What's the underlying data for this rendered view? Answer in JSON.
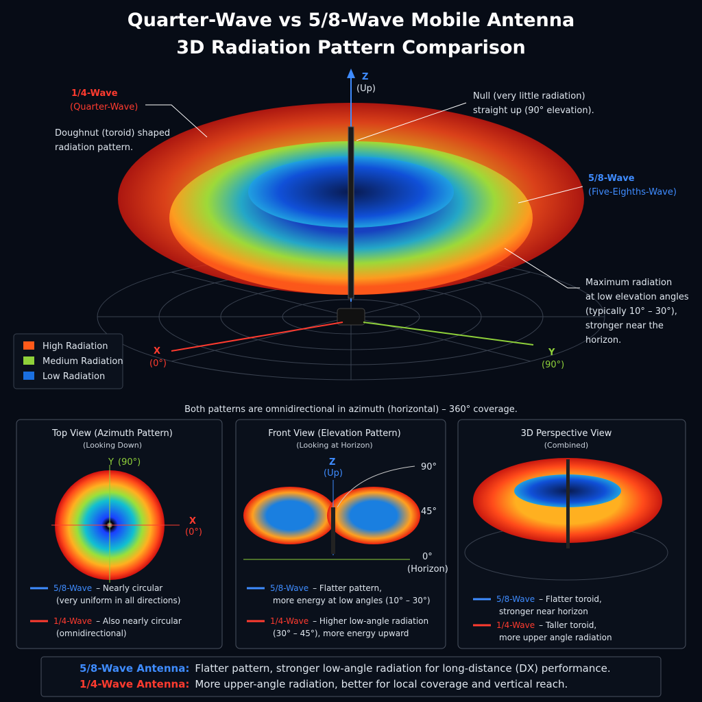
{
  "header": {
    "title_lines": [
      "Quarter-Wave vs 5/8-Wave Mobile Antenna",
      "3D Radiation Pattern Comparison"
    ]
  },
  "main": {
    "axes": {
      "z": "Z",
      "z_note": "(Up)",
      "x": "X",
      "x_note": "(0°)",
      "y": "Y",
      "y_note": "(90°)"
    },
    "quarter_label": {
      "title": "1/4-Wave",
      "subtitle": "(Quarter-Wave)"
    },
    "eighth_label": {
      "title": "5/8-Wave",
      "subtitle": "(Five-Eighths-Wave)"
    },
    "notes": [
      [
        "Doughnut (toroid) shaped",
        "radiation pattern."
      ],
      [
        "Null (very little radiation)",
        "straight up (90° elevation)."
      ],
      [
        "Maximum radiation",
        "at low elevation angles",
        "(typically 10° – 30°),",
        "stronger near the",
        "horizon."
      ]
    ],
    "legend": [
      "High Radiation",
      "Medium Radiation",
      "Low Radiation"
    ],
    "coverage_note": "Both patterns are omnidirectional in azimuth (horizontal) – 360° coverage."
  },
  "panels": [
    {
      "title": "Top View (Azimuth Pattern)",
      "subtitle": "(Looking Down)",
      "labels": [
        "Y",
        "(90°)",
        "X",
        "(0°)"
      ],
      "items": [
        {
          "name": "5/8-Wave",
          "text": [
            "– Nearly circular",
            "(very uniform in all directions)"
          ]
        },
        {
          "name": "1/4-Wave",
          "text": [
            "– Also nearly circular",
            "(omnidirectional)"
          ]
        }
      ]
    },
    {
      "title": "Front View (Elevation Pattern)",
      "subtitle": "(Looking at Horizon)",
      "labels": [
        "Z",
        "(Up)",
        "90°",
        "45°",
        "0°",
        "(Horizon)"
      ],
      "items": [
        {
          "name": "5/8-Wave",
          "text": [
            "– Flatter pattern,",
            "more energy at low angles (10° – 30°)"
          ]
        },
        {
          "name": "1/4-Wave",
          "text": [
            "– Higher low-angle radiation",
            "(30° – 45°), more energy upward"
          ]
        }
      ]
    },
    {
      "title": "3D Perspective View",
      "subtitle": "(Combined)",
      "labels": [],
      "items": [
        {
          "name": "5/8-Wave",
          "text": [
            "– Flatter toroid,",
            "stronger near horizon"
          ]
        },
        {
          "name": "1/4-Wave",
          "text": [
            "– Taller toroid,",
            "more upper angle radiation"
          ]
        }
      ]
    }
  ],
  "footer": [
    {
      "name": "5/8-Wave Antenna:",
      "text": "Flatter pattern, stronger low-angle radiation for long-distance (DX) performance."
    },
    {
      "name": "1/4-Wave Antenna:",
      "text": "More upper-angle radiation, better for local coverage and vertical reach."
    }
  ]
}
